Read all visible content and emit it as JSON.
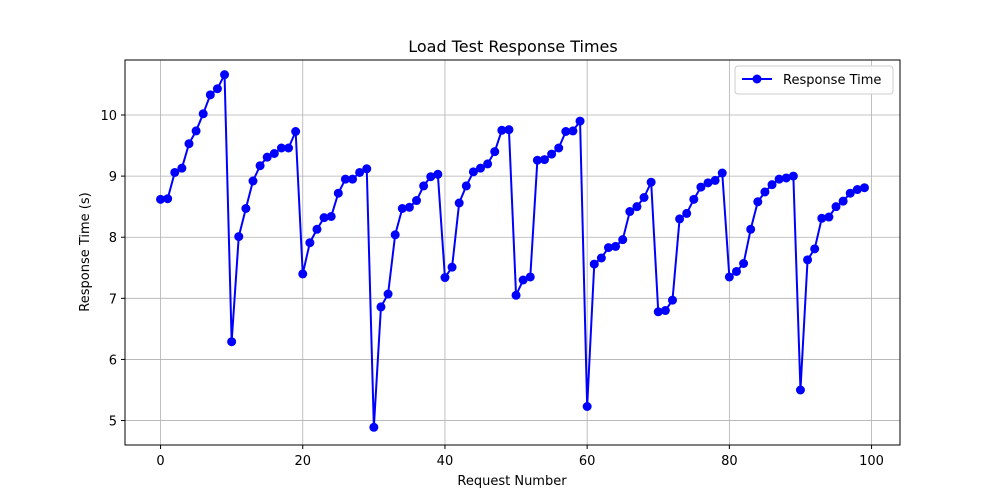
{
  "chart_data": {
    "type": "line",
    "title": "Load Test Response Times",
    "xlabel": "Request Number",
    "ylabel": "Response Time (s)",
    "xlim": [
      -5,
      104
    ],
    "ylim": [
      4.6,
      10.9
    ],
    "x_ticks": [
      0,
      20,
      40,
      60,
      80,
      100
    ],
    "y_ticks": [
      5,
      6,
      7,
      8,
      9,
      10
    ],
    "grid": true,
    "legend_position": "top-right",
    "series": [
      {
        "name": "Response Time",
        "color": "#0000ff",
        "marker": "circle",
        "x": [
          0,
          1,
          2,
          3,
          4,
          5,
          6,
          7,
          8,
          9,
          10,
          11,
          12,
          13,
          14,
          15,
          16,
          17,
          18,
          19,
          20,
          21,
          22,
          23,
          24,
          25,
          26,
          27,
          28,
          29,
          30,
          31,
          32,
          33,
          34,
          35,
          36,
          37,
          38,
          39,
          40,
          41,
          42,
          43,
          44,
          45,
          46,
          47,
          48,
          49,
          50,
          51,
          52,
          53,
          54,
          55,
          56,
          57,
          58,
          59,
          60,
          61,
          62,
          63,
          64,
          65,
          66,
          67,
          68,
          69,
          70,
          71,
          72,
          73,
          74,
          75,
          76,
          77,
          78,
          79,
          80,
          81,
          82,
          83,
          84,
          85,
          86,
          87,
          88,
          89,
          90,
          91,
          92,
          93,
          94,
          95,
          96,
          97,
          98,
          99
        ],
        "values": [
          8.62,
          8.63,
          9.06,
          9.13,
          9.53,
          9.74,
          10.02,
          10.33,
          10.43,
          10.66,
          6.29,
          8.01,
          8.47,
          8.92,
          9.17,
          9.31,
          9.37,
          9.46,
          9.46,
          9.73,
          7.4,
          7.91,
          8.13,
          8.32,
          8.34,
          8.72,
          8.95,
          8.95,
          9.06,
          9.12,
          4.89,
          6.86,
          7.07,
          8.04,
          8.47,
          8.49,
          8.6,
          8.84,
          8.99,
          9.03,
          7.34,
          7.51,
          8.56,
          8.84,
          9.07,
          9.13,
          9.2,
          9.4,
          9.75,
          9.76,
          7.05,
          7.3,
          7.35,
          9.26,
          9.27,
          9.36,
          9.46,
          9.73,
          9.74,
          9.9,
          5.23,
          7.56,
          7.66,
          7.83,
          7.85,
          7.96,
          8.42,
          8.5,
          8.65,
          8.9,
          6.78,
          6.8,
          6.97,
          8.3,
          8.39,
          8.62,
          8.82,
          8.89,
          8.93,
          9.05,
          7.35,
          7.44,
          7.57,
          8.13,
          8.58,
          8.74,
          8.86,
          8.95,
          8.97,
          9.0,
          5.5,
          7.63,
          7.81,
          8.31,
          8.33,
          8.5,
          8.59,
          8.72,
          8.78,
          8.81
        ]
      }
    ]
  }
}
